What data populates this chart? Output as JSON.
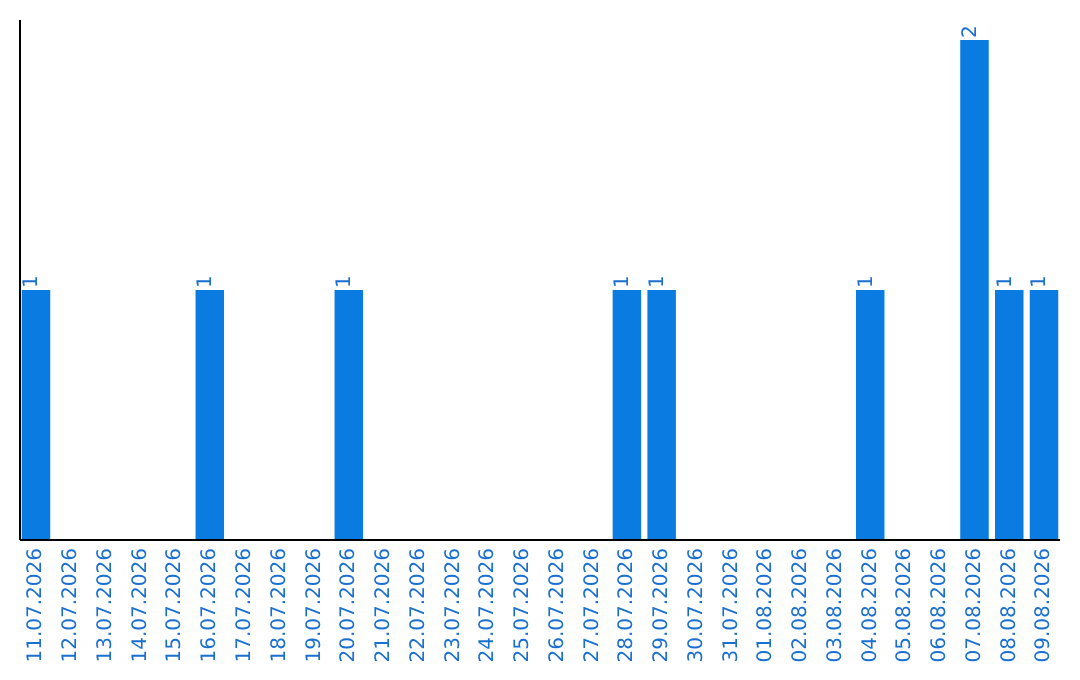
{
  "chart_data": {
    "type": "bar",
    "categories": [
      "11.07.2026",
      "12.07.2026",
      "13.07.2026",
      "14.07.2026",
      "15.07.2026",
      "16.07.2026",
      "17.07.2026",
      "18.07.2026",
      "19.07.2026",
      "20.07.2026",
      "21.07.2026",
      "22.07.2026",
      "23.07.2026",
      "24.07.2026",
      "25.07.2026",
      "26.07.2026",
      "27.07.2026",
      "28.07.2026",
      "29.07.2026",
      "30.07.2026",
      "31.07.2026",
      "01.08.2026",
      "02.08.2026",
      "03.08.2026",
      "04.08.2026",
      "05.08.2026",
      "06.08.2026",
      "07.08.2026",
      "08.08.2026",
      "09.08.2026"
    ],
    "values": [
      1,
      0,
      0,
      0,
      0,
      1,
      0,
      0,
      0,
      1,
      0,
      0,
      0,
      0,
      0,
      0,
      0,
      1,
      1,
      0,
      0,
      0,
      0,
      0,
      1,
      0,
      0,
      2,
      1,
      1
    ],
    "value_labels": [
      "1",
      null,
      null,
      null,
      null,
      "1",
      null,
      null,
      null,
      "1",
      null,
      null,
      null,
      null,
      null,
      null,
      null,
      "1",
      "1",
      null,
      null,
      null,
      null,
      null,
      "1",
      null,
      null,
      "2",
      "1",
      "1"
    ],
    "color": "#0a7be0",
    "ylim": [
      0,
      2.08
    ],
    "tick_labels": "x"
  }
}
